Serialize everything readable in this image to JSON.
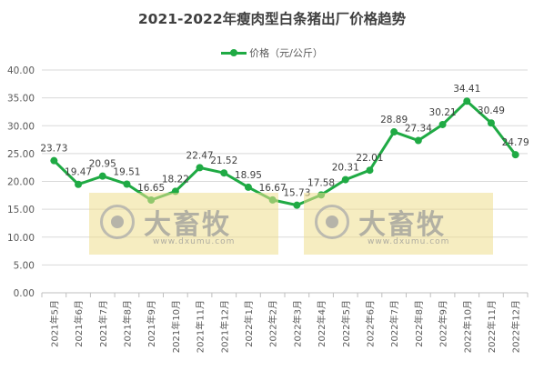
{
  "chart_data": {
    "type": "line",
    "title": "2021-2022年瘦肉型白条猪出厂价格趋势",
    "xlabel": "",
    "ylabel": "",
    "ylim": [
      0,
      40
    ],
    "yticks": [
      "0.00",
      "5.00",
      "10.00",
      "15.00",
      "20.00",
      "25.00",
      "30.00",
      "35.00",
      "40.00"
    ],
    "grid": true,
    "legend_position": "top",
    "line_color": "#1faa44",
    "categories": [
      "2021年5月",
      "2021年6月",
      "2021年7月",
      "2021年8月",
      "2021年9月",
      "2021年10月",
      "2021年11月",
      "2021年12月",
      "2022年1月",
      "2022年2月",
      "2022年3月",
      "2022年4月",
      "2022年5月",
      "2022年6月",
      "2022年7月",
      "2022年8月",
      "2022年9月",
      "2022年10月",
      "2022年11月",
      "2022年12月"
    ],
    "series": [
      {
        "name": "价格（元/公斤）",
        "values": [
          23.73,
          19.47,
          20.95,
          19.51,
          16.65,
          18.22,
          22.47,
          21.52,
          18.95,
          16.67,
          15.73,
          17.58,
          20.31,
          22.01,
          28.89,
          27.34,
          30.21,
          34.41,
          30.49,
          24.79
        ],
        "labels": [
          "23.73",
          "19.47",
          "20.95",
          "19.51",
          "16.65",
          "18.22",
          "22.47",
          "21.52",
          "18.95",
          "16.67",
          "15.73",
          "17.58",
          "20.31",
          "22.01",
          "28.89",
          "27.34",
          "30.21",
          "34.41",
          "30.49",
          "24.79"
        ]
      }
    ]
  },
  "watermark": {
    "brand": "大畜牧",
    "url": "www.dxumu.com"
  }
}
